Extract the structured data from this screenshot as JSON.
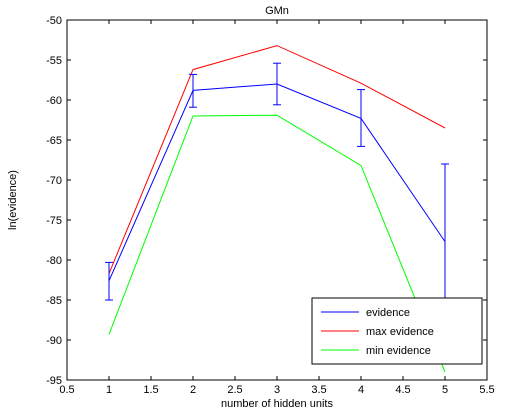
{
  "chart_data": {
    "type": "line",
    "title": "GMn",
    "xlabel": "number of hidden units",
    "ylabel": "ln(evidence)",
    "xlim": [
      0.5,
      5.5
    ],
    "ylim": [
      -95,
      -50
    ],
    "xticks": [
      0.5,
      1,
      1.5,
      2,
      2.5,
      3,
      3.5,
      4,
      4.5,
      5,
      5.5
    ],
    "yticks": [
      -95,
      -90,
      -85,
      -80,
      -75,
      -70,
      -65,
      -60,
      -55,
      -50
    ],
    "grid": false,
    "legend_position": "bottom-right",
    "x": [
      1,
      2,
      3,
      4,
      5
    ],
    "series": [
      {
        "name": "evidence",
        "color": "#0000ff",
        "values": [
          -82.6,
          -58.8,
          -58.0,
          -62.3,
          -77.7
        ],
        "error_low": [
          -85.0,
          -60.9,
          -60.6,
          -65.8,
          -87.5
        ],
        "error_high": [
          -80.3,
          -56.8,
          -55.4,
          -58.7,
          -68.0
        ]
      },
      {
        "name": "max evidence",
        "color": "#ff0000",
        "values": [
          -81.7,
          -56.2,
          -53.2,
          -57.9,
          -63.5
        ]
      },
      {
        "name": "min evidence",
        "color": "#00ff00",
        "values": [
          -89.3,
          -62.0,
          -61.9,
          -68.2,
          -94.0
        ]
      }
    ]
  }
}
